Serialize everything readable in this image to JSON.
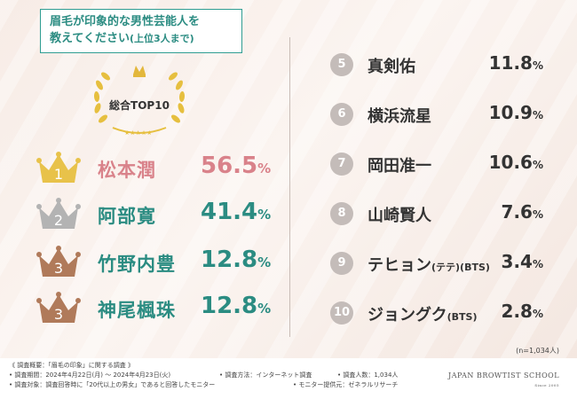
{
  "title": {
    "line1": "眉毛が印象的な男性芸能人を",
    "line2": "教えてください",
    "line2_sub": "(上位3人まで)"
  },
  "badge": {
    "label": "総合TOP10"
  },
  "top": [
    {
      "rank": "1",
      "name": "松本潤",
      "pct_main": "56.5",
      "pct_unit": "%",
      "color": "#d9828a",
      "crown": "#e8c24a"
    },
    {
      "rank": "2",
      "name": "阿部寛",
      "pct_main": "41.4",
      "pct_unit": "%",
      "color": "#2b8c82",
      "crown": "#b3b3b3"
    },
    {
      "rank": "3",
      "name": "竹野内豊",
      "pct_main": "12.8",
      "pct_unit": "%",
      "color": "#2b8c82",
      "crown": "#b07a5a"
    },
    {
      "rank": "3",
      "name": "神尾楓珠",
      "pct_main": "12.8",
      "pct_unit": "%",
      "color": "#2b8c82",
      "crown": "#b07a5a"
    }
  ],
  "rest": [
    {
      "rank": "5",
      "name": "真剣佑",
      "suffix": "",
      "pct_main": "11.8",
      "pct_unit": "%"
    },
    {
      "rank": "6",
      "name": "横浜流星",
      "suffix": "",
      "pct_main": "10.9",
      "pct_unit": "%"
    },
    {
      "rank": "7",
      "name": "岡田准一",
      "suffix": "",
      "pct_main": "10.6",
      "pct_unit": "%"
    },
    {
      "rank": "8",
      "name": "山崎賢人",
      "suffix": "",
      "pct_main": "7.6",
      "pct_unit": "%"
    },
    {
      "rank": "9",
      "name": "テヒョン",
      "suffix": "(テテ)(BTS)",
      "pct_main": "3.4",
      "pct_unit": "%"
    },
    {
      "rank": "10",
      "name": "ジョングク",
      "suffix": "(BTS)",
      "pct_main": "2.8",
      "pct_unit": "%"
    }
  ],
  "sample": "(n=1,034人)",
  "footer": {
    "overview": "《 調査概要：「眉毛の印象」に関する調査 》",
    "period": "• 調査期間：2024年4月22日(月) ～ 2024年4月23日(火)",
    "method": "• 調査方法：インターネット調査",
    "count": "• 調査人数：1,034人",
    "target": "• 調査対象：調査回答時に「20代以上の男女」であると回答したモニター",
    "provider": "• モニター提供元：ゼネラルリサーチ"
  },
  "brand": {
    "name": "JAPAN BROWTIST SCHOOL",
    "since": "Since 2005"
  }
}
